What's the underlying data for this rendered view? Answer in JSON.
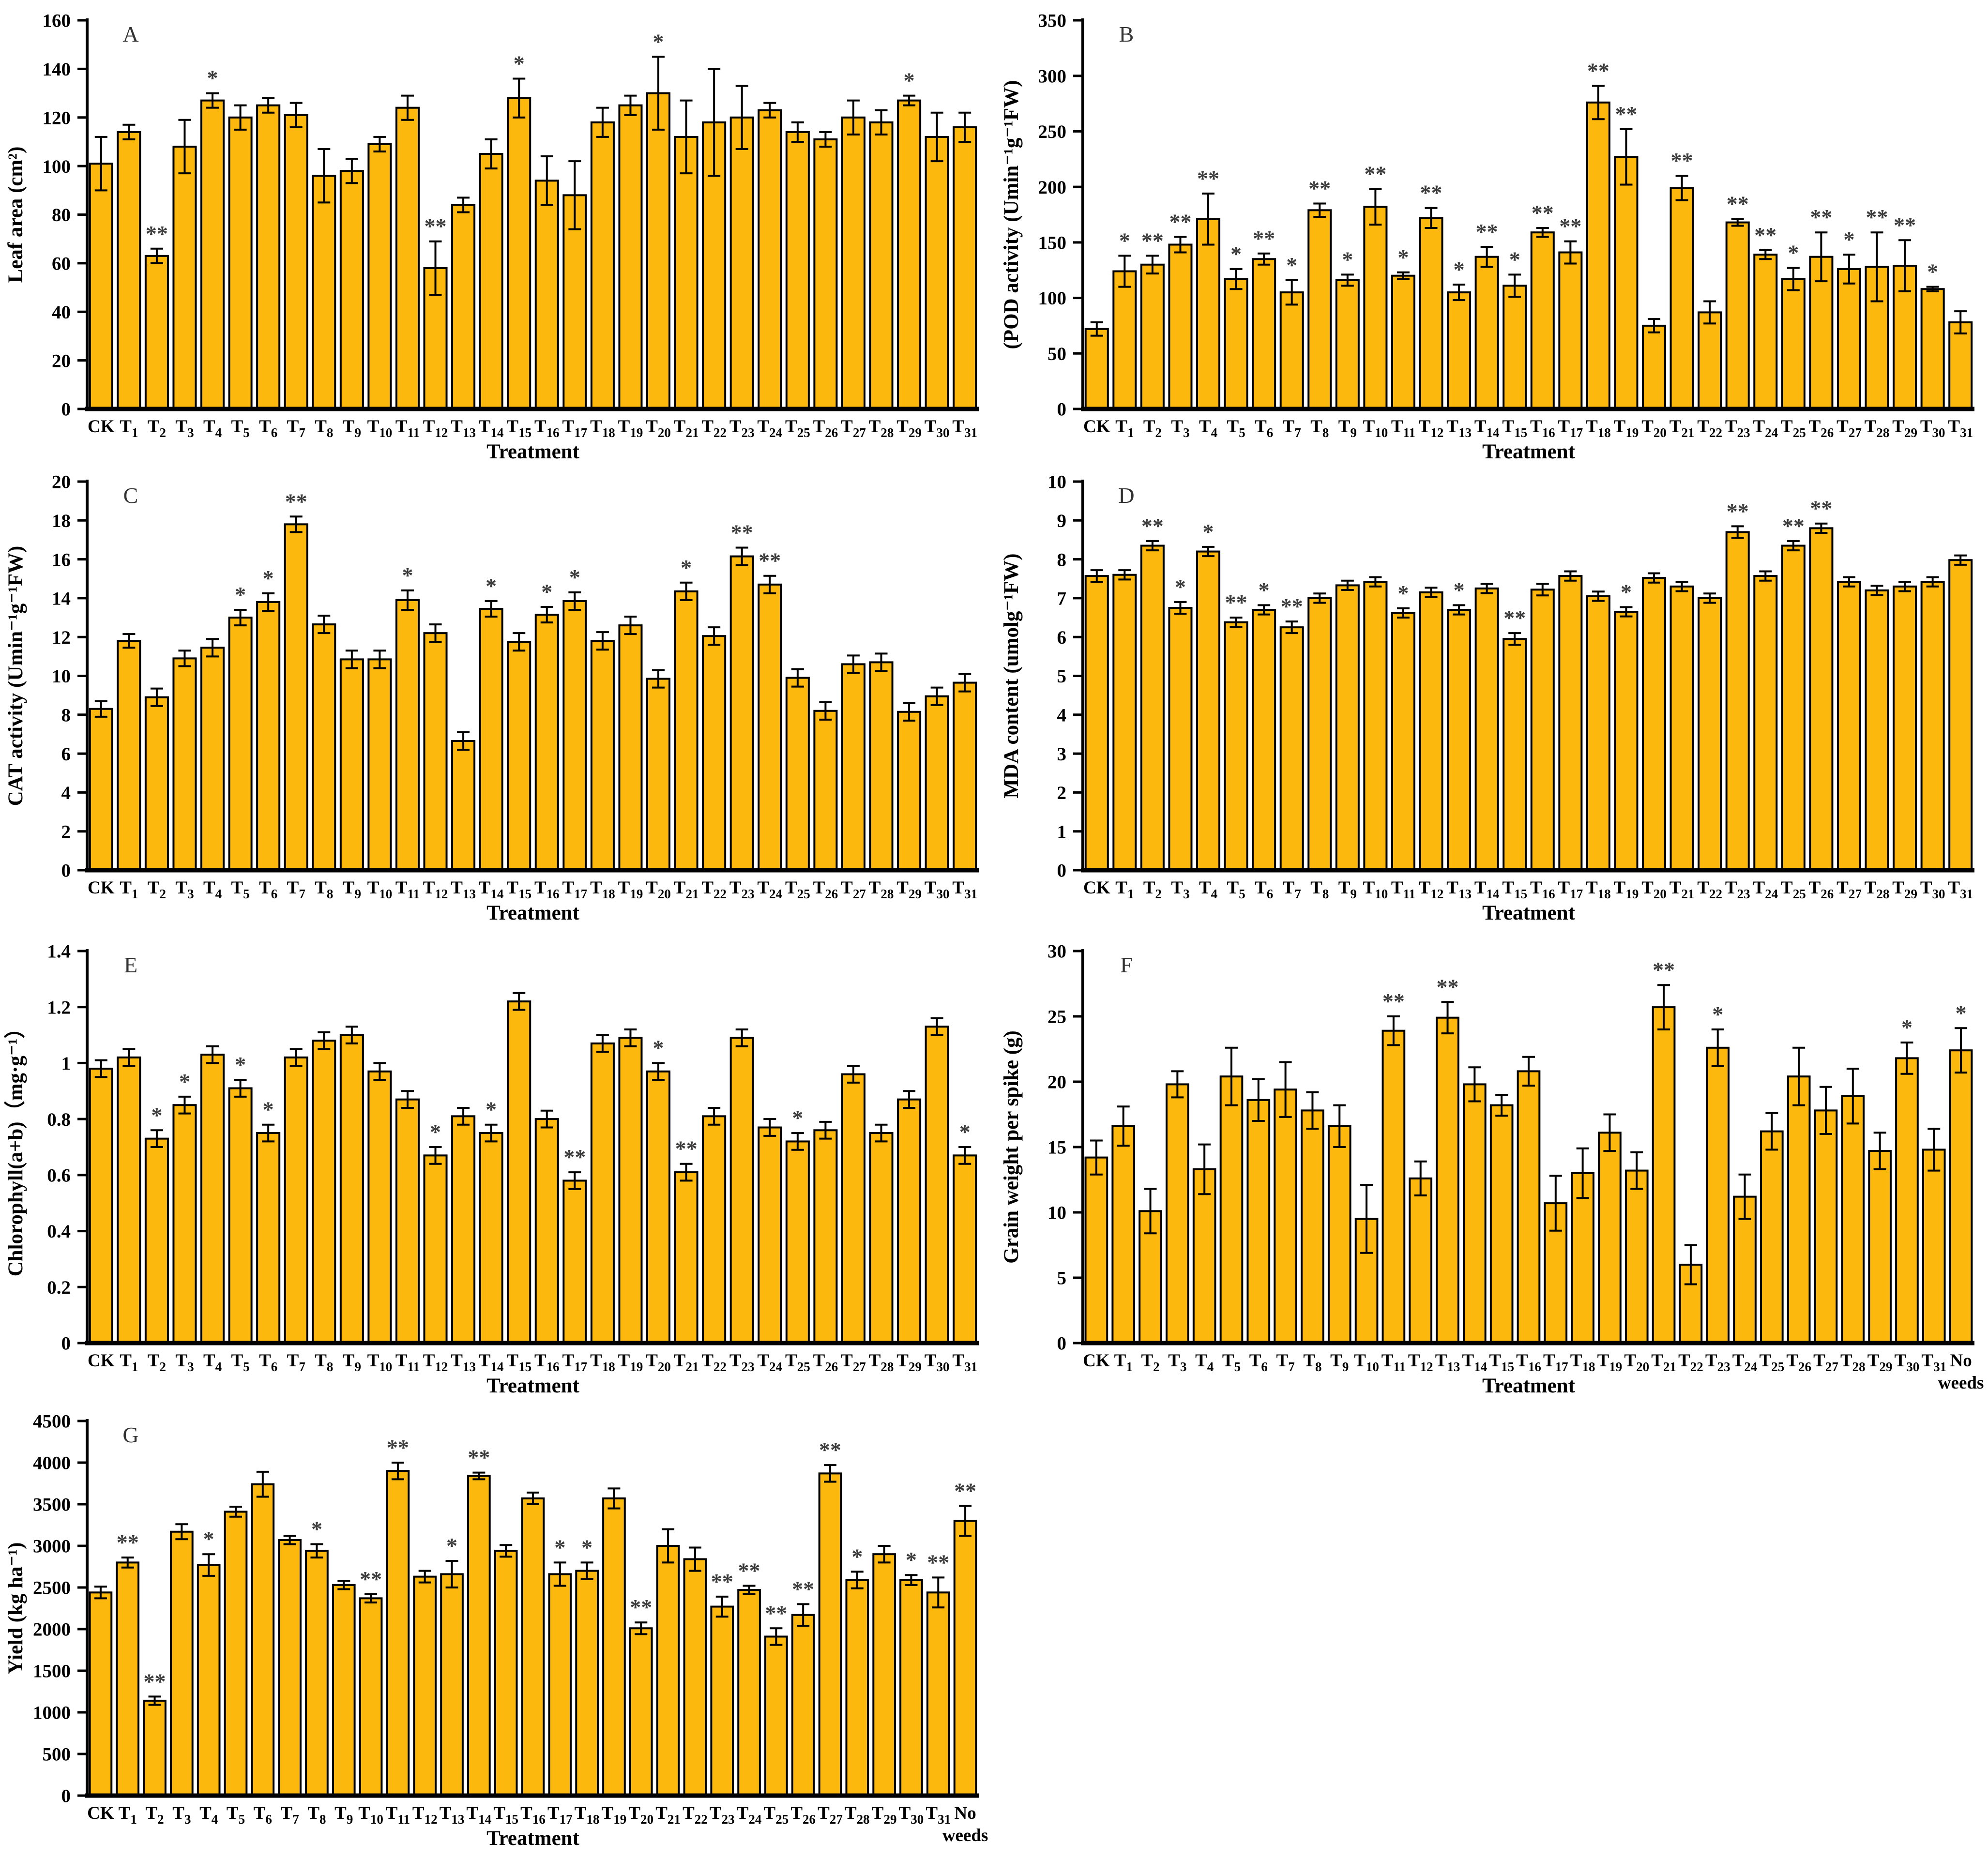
{
  "style": {
    "background": "#FFFFFF",
    "bar_fill": "#FDB80E",
    "bar_stroke": "#000000",
    "axis_color": "#000000",
    "sig_color": "#3C3C3C",
    "panel_letter_color": "#333333"
  },
  "categories": {
    "standard": [
      "CK",
      "T1",
      "T2",
      "T3",
      "T4",
      "T5",
      "T6",
      "T7",
      "T8",
      "T9",
      "T10",
      "T11",
      "T12",
      "T13",
      "T14",
      "T15",
      "T16",
      "T17",
      "T18",
      "T19",
      "T20",
      "T21",
      "T22",
      "T23",
      "T24",
      "T25",
      "T26",
      "T27",
      "T28",
      "T29",
      "T30",
      "T31"
    ],
    "with_no_weeds": [
      "CK",
      "T1",
      "T2",
      "T3",
      "T4",
      "T5",
      "T6",
      "T7",
      "T8",
      "T9",
      "T10",
      "T11",
      "T12",
      "T13",
      "T14",
      "T15",
      "T16",
      "T17",
      "T18",
      "T19",
      "T20",
      "T21",
      "T22",
      "T23",
      "T24",
      "T25",
      "T26",
      "T27",
      "T28",
      "T29",
      "T30",
      "T31",
      "No weeds"
    ]
  },
  "chart_data": [
    {
      "type": "bar",
      "title": "A",
      "ylabel": "Leaf area (cm²)",
      "xlabel": "Treatment",
      "ylim": [
        0,
        160
      ],
      "ystep": 20,
      "cats": "standard",
      "grid": false,
      "legend": "none",
      "values": [
        101,
        114,
        63,
        108,
        127,
        120,
        125,
        121,
        96,
        98,
        109,
        124,
        58,
        84,
        105,
        128,
        94,
        88,
        118,
        125,
        130,
        112,
        118,
        120,
        123,
        114,
        111,
        120,
        118,
        127,
        112,
        116
      ],
      "errors": [
        11,
        3,
        3,
        11,
        3,
        5,
        3,
        5,
        11,
        5,
        3,
        5,
        11,
        3,
        6,
        8,
        10,
        14,
        6,
        4,
        15,
        15,
        22,
        13,
        3,
        4,
        3,
        7,
        5,
        2,
        10,
        6
      ],
      "sig": [
        "",
        "",
        "**",
        "",
        "*",
        "",
        "",
        "",
        "",
        "",
        "",
        "",
        "**",
        "",
        "",
        "*",
        "",
        "",
        "",
        "",
        "*",
        "",
        "",
        "",
        "",
        "",
        "",
        "",
        "",
        "*",
        "",
        ""
      ]
    },
    {
      "type": "bar",
      "title": "B",
      "ylabel": "(POD activity (Umin⁻¹g⁻¹FW)",
      "xlabel": "Treatment",
      "ylim": [
        0,
        350
      ],
      "ystep": 50,
      "cats": "standard",
      "grid": false,
      "legend": "none",
      "values": [
        72,
        124,
        130,
        148,
        171,
        117,
        135,
        105,
        179,
        116,
        182,
        120,
        172,
        105,
        137,
        111,
        159,
        141,
        276,
        227,
        75,
        199,
        87,
        168,
        139,
        117,
        137,
        126,
        128,
        129,
        108,
        78
      ],
      "errors": [
        6,
        14,
        8,
        7,
        23,
        9,
        5,
        11,
        6,
        5,
        16,
        3,
        9,
        7,
        9,
        10,
        4,
        10,
        15,
        25,
        6,
        11,
        10,
        3,
        4,
        10,
        22,
        13,
        31,
        23,
        2,
        10
      ],
      "sig": [
        "",
        "*",
        "**",
        "**",
        "**",
        "*",
        "**",
        "*",
        "**",
        "*",
        "**",
        "*",
        "**",
        "*",
        "**",
        "*",
        "**",
        "**",
        "**",
        "**",
        "",
        "**",
        "",
        "**",
        "**",
        "*",
        "**",
        "*",
        "**",
        "**",
        "*",
        ""
      ]
    },
    {
      "type": "bar",
      "title": "C",
      "ylabel": "CAT activity (Umin⁻¹g⁻¹FW)",
      "xlabel": "Treatment",
      "ylim": [
        0,
        20
      ],
      "ystep": 2,
      "cats": "standard",
      "grid": false,
      "legend": "none",
      "values": [
        8.3,
        11.8,
        8.9,
        10.9,
        11.45,
        13.0,
        13.8,
        17.8,
        12.65,
        10.85,
        10.85,
        13.9,
        12.2,
        6.65,
        13.45,
        11.75,
        13.15,
        13.85,
        11.8,
        12.6,
        9.85,
        14.35,
        12.05,
        16.15,
        14.7,
        9.9,
        8.2,
        10.6,
        10.7,
        8.15,
        8.95,
        9.65
      ],
      "errors": [
        0.4,
        0.35,
        0.45,
        0.4,
        0.45,
        0.4,
        0.45,
        0.4,
        0.45,
        0.45,
        0.45,
        0.5,
        0.45,
        0.45,
        0.4,
        0.45,
        0.4,
        0.45,
        0.45,
        0.45,
        0.45,
        0.45,
        0.45,
        0.45,
        0.45,
        0.45,
        0.45,
        0.45,
        0.45,
        0.45,
        0.45,
        0.45
      ],
      "sig": [
        "",
        "",
        "",
        "",
        "",
        "*",
        "*",
        "**",
        "",
        "",
        "",
        "*",
        "",
        "",
        "*",
        "",
        "*",
        "*",
        "",
        "",
        "",
        "*",
        "",
        "**",
        "**",
        "",
        "",
        "",
        "",
        "",
        "",
        ""
      ]
    },
    {
      "type": "bar",
      "title": "D",
      "ylabel": "MDA content (umolg⁻¹FW)",
      "xlabel": "Treatment",
      "ylim": [
        0,
        10
      ],
      "ystep": 1,
      "cats": "standard",
      "grid": false,
      "legend": "none",
      "values": [
        7.57,
        7.6,
        8.35,
        6.75,
        8.2,
        6.38,
        6.7,
        6.25,
        7.0,
        7.33,
        7.42,
        6.62,
        7.15,
        6.7,
        7.25,
        5.95,
        7.22,
        7.57,
        7.05,
        6.65,
        7.52,
        7.3,
        7.0,
        8.7,
        7.57,
        8.35,
        8.8,
        7.42,
        7.2,
        7.3,
        7.42,
        7.98
      ],
      "errors": [
        0.15,
        0.12,
        0.12,
        0.15,
        0.12,
        0.12,
        0.12,
        0.15,
        0.12,
        0.12,
        0.12,
        0.12,
        0.12,
        0.12,
        0.12,
        0.15,
        0.15,
        0.12,
        0.12,
        0.12,
        0.12,
        0.12,
        0.12,
        0.15,
        0.12,
        0.12,
        0.12,
        0.12,
        0.12,
        0.12,
        0.12,
        0.12
      ],
      "sig": [
        "",
        "",
        "**",
        "*",
        "*",
        "**",
        "*",
        "**",
        "",
        "",
        "",
        "*",
        "",
        "*",
        "",
        "**",
        "",
        "",
        "",
        "*",
        "",
        "",
        "",
        "**",
        "",
        "**",
        "**",
        "",
        "",
        "",
        "",
        ""
      ]
    },
    {
      "type": "bar",
      "title": "E",
      "ylabel": "Chlorophyll(a+b)（mg·g⁻¹）",
      "xlabel": "Treatment",
      "ylim": [
        0,
        1.4
      ],
      "ystep": 0.2,
      "cats": "standard",
      "grid": false,
      "legend": "none",
      "values": [
        0.98,
        1.02,
        0.73,
        0.85,
        1.03,
        0.91,
        0.75,
        1.02,
        1.08,
        1.1,
        0.97,
        0.87,
        0.67,
        0.81,
        0.75,
        1.22,
        0.8,
        0.58,
        1.07,
        1.09,
        0.97,
        0.61,
        0.81,
        1.09,
        0.77,
        0.72,
        0.76,
        0.96,
        0.75,
        0.87,
        1.13,
        0.67
      ],
      "errors": [
        0.03,
        0.03,
        0.03,
        0.03,
        0.03,
        0.03,
        0.03,
        0.03,
        0.03,
        0.03,
        0.03,
        0.03,
        0.03,
        0.03,
        0.03,
        0.03,
        0.03,
        0.03,
        0.03,
        0.03,
        0.03,
        0.03,
        0.03,
        0.03,
        0.03,
        0.03,
        0.03,
        0.03,
        0.03,
        0.03,
        0.03,
        0.03
      ],
      "sig": [
        "",
        "",
        "*",
        "*",
        "",
        "*",
        "*",
        "",
        "",
        "",
        "",
        "",
        "*",
        "",
        "*",
        "",
        "",
        "**",
        "",
        "",
        "*",
        "**",
        "",
        "",
        "",
        "*",
        "",
        "",
        "",
        "",
        "",
        "*"
      ]
    },
    {
      "type": "bar",
      "title": "F",
      "ylabel": "Grain weight per spike (g)",
      "xlabel": "Treatment",
      "ylim": [
        0,
        30
      ],
      "ystep": 5,
      "cats": "with_no_weeds",
      "grid": false,
      "legend": "none",
      "values": [
        14.2,
        16.6,
        10.1,
        19.8,
        13.3,
        20.4,
        18.6,
        19.4,
        17.8,
        16.6,
        9.5,
        23.9,
        12.6,
        24.9,
        19.8,
        18.2,
        20.8,
        10.7,
        13.0,
        16.1,
        13.2,
        25.7,
        6.0,
        22.6,
        11.2,
        16.2,
        20.4,
        17.8,
        18.9,
        14.7,
        21.8,
        14.8,
        22.4
      ],
      "errors": [
        1.3,
        1.5,
        1.7,
        1.0,
        1.9,
        2.2,
        1.6,
        2.1,
        1.4,
        1.6,
        2.6,
        1.1,
        1.3,
        1.2,
        1.3,
        0.8,
        1.1,
        2.1,
        1.9,
        1.4,
        1.4,
        1.7,
        1.5,
        1.4,
        1.7,
        1.4,
        2.2,
        1.8,
        2.1,
        1.4,
        1.2,
        1.6,
        1.7
      ],
      "sig": [
        "",
        "",
        "",
        "",
        "",
        "",
        "",
        "",
        "",
        "",
        "",
        "**",
        "",
        "**",
        "",
        "",
        "",
        "",
        "",
        "",
        "",
        "**",
        "",
        "*",
        "",
        "",
        "",
        "",
        "",
        "",
        "*",
        "",
        "*"
      ]
    },
    {
      "type": "bar",
      "title": "G",
      "ylabel": "Yield (kg ha⁻¹)",
      "xlabel": "Treatment",
      "ylim": [
        0,
        4500
      ],
      "ystep": 500,
      "cats": "with_no_weeds",
      "grid": false,
      "legend": "none",
      "values": [
        2440,
        2800,
        1140,
        3170,
        2770,
        3410,
        3740,
        3070,
        2940,
        2530,
        2370,
        3900,
        2630,
        2660,
        3840,
        2940,
        3570,
        2660,
        2700,
        3570,
        2010,
        3000,
        2840,
        2270,
        2470,
        1910,
        2170,
        3870,
        2590,
        2900,
        2590,
        2440,
        3300
      ],
      "errors": [
        70,
        60,
        50,
        90,
        130,
        60,
        150,
        50,
        80,
        50,
        50,
        100,
        70,
        160,
        40,
        70,
        70,
        140,
        100,
        120,
        70,
        200,
        140,
        120,
        50,
        100,
        130,
        100,
        100,
        100,
        60,
        180,
        180
      ],
      "sig": [
        "",
        "**",
        "**",
        "",
        "*",
        "",
        "",
        "",
        "*",
        "",
        "**",
        "**",
        "",
        "*",
        "**",
        "",
        "",
        "*",
        "*",
        "",
        "**",
        "",
        "",
        "**",
        "**",
        "**",
        "**",
        "**",
        "*",
        "",
        "*",
        "**",
        "**"
      ]
    }
  ]
}
